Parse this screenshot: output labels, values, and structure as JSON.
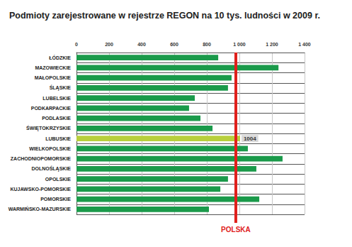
{
  "chart_data": {
    "type": "bar",
    "title": "Podmioty zarejestrowane w rejestrze REGON na 10 tys. ludności w 2009 r.",
    "orientation": "horizontal",
    "categories": [
      "ŁÓDZKIE",
      "MAZOWIECKIE",
      "MAŁOPOLSKIE",
      "ŚLĄSKIE",
      "LUBELSKIE",
      "PODKARPACKIE",
      "PODLASKIE",
      "ŚWIĘTOKRZYSKIE",
      "LUBUSKIE",
      "WIELKOPOLSKIE",
      "ZACHODNIOPOMORSKIE",
      "DOLNOŚLĄSKIE",
      "OPOLSKIE",
      "KUJAWSKO-POMORSKIE",
      "POMORSKIE",
      "WARMIŃSKO-MAZURSKIE"
    ],
    "values": [
      870,
      1240,
      952,
      930,
      726,
      691,
      761,
      835,
      1004,
      1052,
      1265,
      1104,
      930,
      883,
      1122,
      813
    ],
    "value_labels": [
      null,
      null,
      null,
      null,
      null,
      null,
      null,
      null,
      "1004",
      null,
      null,
      null,
      null,
      null,
      null,
      null
    ],
    "colors": [
      "#1a9a4a",
      "#1a9a4a",
      "#1a9a4a",
      "#1a9a4a",
      "#1a9a4a",
      "#1a9a4a",
      "#1a9a4a",
      "#1a9a4a",
      "#b8cf3c",
      "#1a9a4a",
      "#1a9a4a",
      "#1a9a4a",
      "#1a9a4a",
      "#1a9a4a",
      "#1a9a4a",
      "#1a9a4a"
    ],
    "xlim": [
      0,
      1400
    ],
    "xticks": [
      0,
      200,
      400,
      600,
      800,
      {
        "value": 1000,
        "label": "1 000"
      },
      {
        "value": 1200,
        "label": "1 200"
      },
      {
        "value": 1400,
        "label": "1 400"
      }
    ],
    "reference_lines": [
      {
        "value": 978,
        "label": "POLSKA",
        "color": "#e0201c"
      }
    ],
    "grid": true
  }
}
